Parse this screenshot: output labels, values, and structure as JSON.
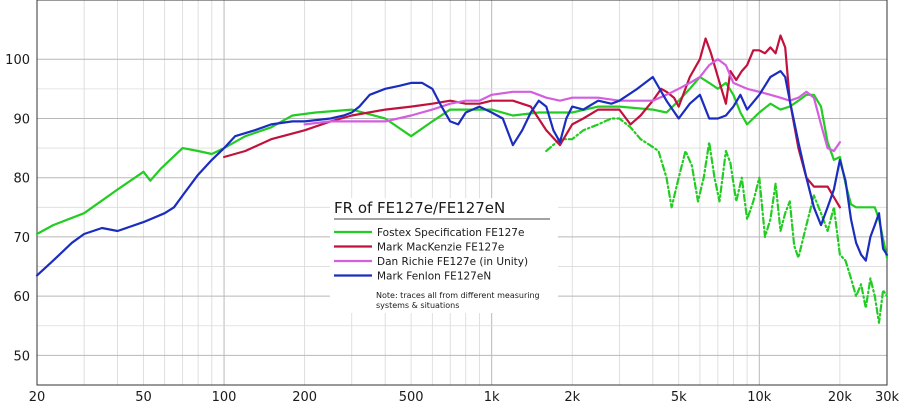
{
  "chart_data": {
    "type": "line",
    "title": "FR of FE127e/FE127eN",
    "xscale": "log",
    "xlim": [
      20,
      30000
    ],
    "ylim": [
      45,
      110
    ],
    "grid": true,
    "legend_position": "center",
    "note_lines": [
      "Note: traces all from different measuring",
      "systems & situations"
    ],
    "x_ticks": [
      {
        "value": 20,
        "label": "20"
      },
      {
        "value": 50,
        "label": "50"
      },
      {
        "value": 100,
        "label": "100"
      },
      {
        "value": 200,
        "label": "200"
      },
      {
        "value": 500,
        "label": "500"
      },
      {
        "value": 1000,
        "label": "1k"
      },
      {
        "value": 2000,
        "label": "2k"
      },
      {
        "value": 5000,
        "label": "5k"
      },
      {
        "value": 10000,
        "label": "10k"
      },
      {
        "value": 20000,
        "label": "20k"
      },
      {
        "value": 30000,
        "label": "30k"
      }
    ],
    "y_ticks": [
      {
        "value": 50,
        "label": "50"
      },
      {
        "value": 60,
        "label": "60"
      },
      {
        "value": 70,
        "label": "70"
      },
      {
        "value": 80,
        "label": "80"
      },
      {
        "value": 90,
        "label": "90"
      },
      {
        "value": 100,
        "label": "100"
      }
    ],
    "series": [
      {
        "name": "Fostex Specification FE127e",
        "color": "#22cc22",
        "style": "solid",
        "points": [
          [
            20,
            70.5
          ],
          [
            23,
            72
          ],
          [
            30,
            74
          ],
          [
            40,
            78
          ],
          [
            50,
            81
          ],
          [
            53,
            79.5
          ],
          [
            58,
            81.5
          ],
          [
            70,
            85
          ],
          [
            80,
            84.5
          ],
          [
            90,
            84
          ],
          [
            100,
            85
          ],
          [
            120,
            87
          ],
          [
            150,
            88.5
          ],
          [
            180,
            90.5
          ],
          [
            220,
            91
          ],
          [
            300,
            91.5
          ],
          [
            400,
            90
          ],
          [
            500,
            87
          ],
          [
            600,
            89.5
          ],
          [
            700,
            91.5
          ],
          [
            800,
            91.5
          ],
          [
            1000,
            91.5
          ],
          [
            1200,
            90.5
          ],
          [
            1500,
            91
          ],
          [
            1800,
            91
          ],
          [
            2000,
            91
          ],
          [
            2500,
            92
          ],
          [
            3000,
            92
          ],
          [
            4000,
            91.5
          ],
          [
            4500,
            91
          ],
          [
            5000,
            93
          ],
          [
            5500,
            95
          ],
          [
            6000,
            97
          ],
          [
            6500,
            96
          ],
          [
            7000,
            95
          ],
          [
            7500,
            96
          ],
          [
            8000,
            94
          ],
          [
            8500,
            91
          ],
          [
            9000,
            89
          ],
          [
            10000,
            91
          ],
          [
            11000,
            92.5
          ],
          [
            12000,
            91.5
          ],
          [
            13000,
            92
          ],
          [
            14000,
            93
          ],
          [
            15000,
            94
          ],
          [
            16000,
            94
          ],
          [
            17000,
            92
          ],
          [
            18000,
            86
          ],
          [
            19000,
            83
          ],
          [
            20000,
            83.5
          ],
          [
            21000,
            79
          ],
          [
            22000,
            75.5
          ],
          [
            23000,
            75
          ],
          [
            25000,
            75
          ],
          [
            27000,
            75
          ],
          [
            28000,
            73
          ],
          [
            30000,
            66.5
          ]
        ]
      },
      {
        "name": "",
        "color": "#22cc22",
        "style": "dashed",
        "points": [
          [
            1600,
            84.5
          ],
          [
            1800,
            86.5
          ],
          [
            2000,
            86.5
          ],
          [
            2200,
            88
          ],
          [
            2500,
            89
          ],
          [
            2800,
            90
          ],
          [
            3000,
            90
          ],
          [
            3300,
            88.5
          ],
          [
            3600,
            86.5
          ],
          [
            3900,
            85.5
          ],
          [
            4200,
            84.5
          ],
          [
            4500,
            80
          ],
          [
            4700,
            75
          ],
          [
            5000,
            80
          ],
          [
            5300,
            84.5
          ],
          [
            5600,
            82
          ],
          [
            5900,
            76
          ],
          [
            6200,
            80
          ],
          [
            6500,
            86
          ],
          [
            6800,
            80
          ],
          [
            7100,
            76
          ],
          [
            7500,
            84.5
          ],
          [
            7800,
            82.5
          ],
          [
            8200,
            76
          ],
          [
            8600,
            80
          ],
          [
            9000,
            73
          ],
          [
            9500,
            76
          ],
          [
            10000,
            80
          ],
          [
            10500,
            70
          ],
          [
            11000,
            73
          ],
          [
            11500,
            79
          ],
          [
            12000,
            71
          ],
          [
            12500,
            74
          ],
          [
            13000,
            76
          ],
          [
            13500,
            68.5
          ],
          [
            14000,
            66.5
          ],
          [
            15000,
            72
          ],
          [
            16000,
            77
          ],
          [
            17000,
            74
          ],
          [
            18000,
            71
          ],
          [
            19000,
            75
          ],
          [
            20000,
            67
          ],
          [
            21000,
            66
          ],
          [
            22000,
            63
          ],
          [
            23000,
            60
          ],
          [
            24000,
            62
          ],
          [
            25000,
            58
          ],
          [
            26000,
            63
          ],
          [
            27000,
            60
          ],
          [
            28000,
            55.5
          ],
          [
            29000,
            61
          ],
          [
            30000,
            60
          ]
        ]
      },
      {
        "name": "Mark MacKenzie FE127e",
        "color": "#c0123c",
        "style": "solid",
        "points": [
          [
            100,
            83.5
          ],
          [
            120,
            84.5
          ],
          [
            150,
            86.5
          ],
          [
            200,
            88
          ],
          [
            250,
            89.5
          ],
          [
            300,
            90.5
          ],
          [
            400,
            91.5
          ],
          [
            500,
            92
          ],
          [
            600,
            92.5
          ],
          [
            700,
            93
          ],
          [
            800,
            92.5
          ],
          [
            900,
            92.5
          ],
          [
            1000,
            93
          ],
          [
            1200,
            93
          ],
          [
            1400,
            92
          ],
          [
            1600,
            88
          ],
          [
            1800,
            85.5
          ],
          [
            2000,
            89
          ],
          [
            2200,
            90
          ],
          [
            2500,
            91.5
          ],
          [
            2800,
            91.5
          ],
          [
            3000,
            91.5
          ],
          [
            3300,
            89
          ],
          [
            3600,
            90.5
          ],
          [
            4000,
            93
          ],
          [
            4300,
            95
          ],
          [
            4500,
            94.5
          ],
          [
            4800,
            93.5
          ],
          [
            5000,
            92
          ],
          [
            5500,
            97
          ],
          [
            6000,
            100
          ],
          [
            6300,
            103.5
          ],
          [
            6600,
            101
          ],
          [
            7000,
            97
          ],
          [
            7500,
            92.5
          ],
          [
            7800,
            98
          ],
          [
            8200,
            96.5
          ],
          [
            8600,
            98
          ],
          [
            9000,
            99
          ],
          [
            9500,
            101.5
          ],
          [
            10000,
            101.5
          ],
          [
            10500,
            101
          ],
          [
            11000,
            102
          ],
          [
            11500,
            101
          ],
          [
            12000,
            104
          ],
          [
            12500,
            102
          ],
          [
            13000,
            93
          ],
          [
            14000,
            85
          ],
          [
            15000,
            80
          ],
          [
            16000,
            78.5
          ],
          [
            18000,
            78.5
          ],
          [
            20000,
            75
          ]
        ]
      },
      {
        "name": "Dan Richie FE127e (in Unity)",
        "color": "#d45ee0",
        "style": "solid",
        "points": [
          [
            200,
            89
          ],
          [
            250,
            89.5
          ],
          [
            300,
            89.5
          ],
          [
            400,
            89.5
          ],
          [
            500,
            90.5
          ],
          [
            600,
            91.5
          ],
          [
            700,
            92.5
          ],
          [
            800,
            93
          ],
          [
            900,
            93
          ],
          [
            1000,
            94
          ],
          [
            1200,
            94.5
          ],
          [
            1400,
            94.5
          ],
          [
            1600,
            93.5
          ],
          [
            1800,
            93
          ],
          [
            2000,
            93.5
          ],
          [
            2500,
            93.5
          ],
          [
            3000,
            93
          ],
          [
            3500,
            93
          ],
          [
            4000,
            93
          ],
          [
            4500,
            94
          ],
          [
            5000,
            95
          ],
          [
            5500,
            96
          ],
          [
            6000,
            97
          ],
          [
            6500,
            99
          ],
          [
            7000,
            100
          ],
          [
            7500,
            99
          ],
          [
            8000,
            96
          ],
          [
            9000,
            95
          ],
          [
            10000,
            94.5
          ],
          [
            11000,
            94
          ],
          [
            12000,
            93.5
          ],
          [
            13000,
            93
          ],
          [
            14000,
            93.5
          ],
          [
            15000,
            94.5
          ],
          [
            16000,
            93.5
          ],
          [
            17000,
            89
          ],
          [
            18000,
            85
          ],
          [
            19000,
            84.5
          ],
          [
            20000,
            86
          ]
        ]
      },
      {
        "name": "Mark Fenlon FE127eN",
        "color": "#1a2dbf",
        "style": "solid",
        "points": [
          [
            20,
            63.5
          ],
          [
            23,
            66
          ],
          [
            27,
            69
          ],
          [
            30,
            70.5
          ],
          [
            35,
            71.5
          ],
          [
            40,
            71
          ],
          [
            50,
            72.5
          ],
          [
            60,
            74
          ],
          [
            65,
            75
          ],
          [
            70,
            77
          ],
          [
            80,
            80.5
          ],
          [
            90,
            83
          ],
          [
            100,
            85
          ],
          [
            110,
            87
          ],
          [
            130,
            88
          ],
          [
            150,
            89
          ],
          [
            180,
            89.5
          ],
          [
            200,
            89.5
          ],
          [
            250,
            90
          ],
          [
            280,
            90.5
          ],
          [
            300,
            91
          ],
          [
            320,
            92
          ],
          [
            350,
            94
          ],
          [
            400,
            95
          ],
          [
            450,
            95.5
          ],
          [
            500,
            96
          ],
          [
            550,
            96
          ],
          [
            600,
            95
          ],
          [
            650,
            92
          ],
          [
            700,
            89.5
          ],
          [
            750,
            89
          ],
          [
            800,
            91
          ],
          [
            900,
            92
          ],
          [
            1000,
            91
          ],
          [
            1100,
            90
          ],
          [
            1200,
            85.5
          ],
          [
            1300,
            88
          ],
          [
            1400,
            91
          ],
          [
            1500,
            93
          ],
          [
            1600,
            92
          ],
          [
            1700,
            88
          ],
          [
            1800,
            86
          ],
          [
            1900,
            90
          ],
          [
            2000,
            92
          ],
          [
            2200,
            91.5
          ],
          [
            2500,
            93
          ],
          [
            2800,
            92.5
          ],
          [
            3000,
            93
          ],
          [
            3500,
            95
          ],
          [
            4000,
            97
          ],
          [
            4500,
            93
          ],
          [
            5000,
            90
          ],
          [
            5500,
            92.5
          ],
          [
            6000,
            94
          ],
          [
            6500,
            90
          ],
          [
            7000,
            90
          ],
          [
            7500,
            90.5
          ],
          [
            8000,
            92
          ],
          [
            8500,
            94
          ],
          [
            9000,
            91.5
          ],
          [
            10000,
            94
          ],
          [
            11000,
            97
          ],
          [
            12000,
            98
          ],
          [
            12500,
            97
          ],
          [
            13000,
            93
          ],
          [
            14000,
            86
          ],
          [
            15000,
            80
          ],
          [
            16000,
            75
          ],
          [
            17000,
            72
          ],
          [
            18000,
            75
          ],
          [
            19000,
            78
          ],
          [
            20000,
            83
          ],
          [
            21000,
            79.5
          ],
          [
            22000,
            73
          ],
          [
            23000,
            69
          ],
          [
            24000,
            67
          ],
          [
            25000,
            66
          ],
          [
            26000,
            70
          ],
          [
            27000,
            72
          ],
          [
            28000,
            74
          ],
          [
            29000,
            68
          ],
          [
            30000,
            67
          ]
        ]
      }
    ]
  }
}
